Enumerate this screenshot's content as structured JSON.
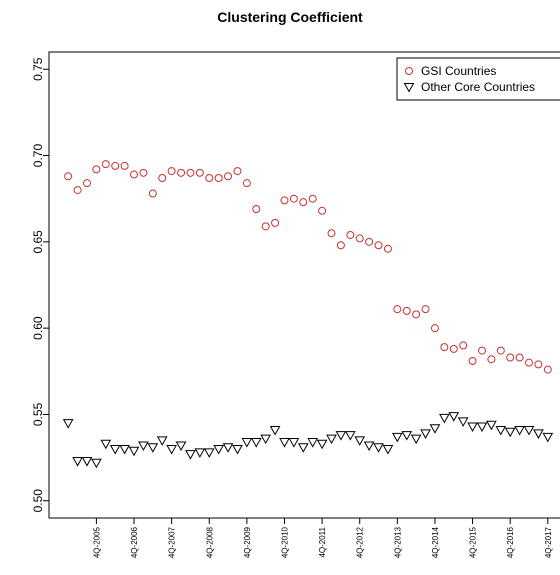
{
  "chart_data": {
    "type": "scatter",
    "title": "Clustering Coefficient",
    "categories": [
      null,
      null,
      null,
      "4Q-2005",
      null,
      null,
      null,
      "4Q-2006",
      null,
      null,
      null,
      "4Q-2007",
      null,
      null,
      null,
      "4Q-2008",
      null,
      null,
      null,
      "4Q-2009",
      null,
      null,
      null,
      "4Q-2010",
      null,
      null,
      null,
      "4Q-2011",
      null,
      null,
      null,
      "4Q-2012",
      null,
      null,
      null,
      "4Q-2013",
      null,
      null,
      null,
      "4Q-2014",
      null,
      null,
      null,
      "4Q-2015",
      null,
      null,
      null,
      "4Q-2016",
      null,
      null,
      null,
      "4Q-2017"
    ],
    "series": [
      {
        "name": "GSI Countries",
        "color": "#c83232",
        "marker": "circle",
        "values": [
          0.688,
          0.68,
          0.684,
          0.692,
          0.695,
          0.694,
          0.694,
          0.689,
          0.69,
          0.678,
          0.687,
          0.691,
          0.69,
          0.69,
          0.69,
          0.687,
          0.687,
          0.688,
          0.691,
          0.684,
          0.669,
          0.659,
          0.661,
          0.674,
          0.675,
          0.673,
          0.675,
          0.668,
          0.655,
          0.648,
          0.654,
          0.652,
          0.65,
          0.648,
          0.646,
          0.611,
          0.61,
          0.608,
          0.611,
          0.6,
          0.589,
          0.588,
          0.59,
          0.581,
          0.587,
          0.582,
          0.587,
          0.583,
          0.583,
          0.58,
          0.579,
          0.576
        ]
      },
      {
        "name": "Other Core Countries",
        "color": "#000000",
        "marker": "triangle-down",
        "values": [
          0.545,
          0.523,
          0.523,
          0.522,
          0.533,
          0.53,
          0.53,
          0.529,
          0.532,
          0.531,
          0.535,
          0.53,
          0.532,
          0.527,
          0.528,
          0.528,
          0.53,
          0.531,
          0.53,
          0.534,
          0.534,
          0.536,
          0.541,
          0.534,
          0.534,
          0.531,
          0.534,
          0.533,
          0.536,
          0.538,
          0.538,
          0.535,
          0.532,
          0.531,
          0.53,
          0.537,
          0.538,
          0.536,
          0.539,
          0.542,
          0.548,
          0.549,
          0.546,
          0.543,
          0.543,
          0.544,
          0.541,
          0.54,
          0.541,
          0.541,
          0.539,
          0.537
        ]
      }
    ],
    "ylim": [
      0.49,
      0.76
    ],
    "yticks": [
      {
        "value": 0.5,
        "label": "0.50"
      },
      {
        "value": 0.55,
        "label": "0.55"
      },
      {
        "value": 0.6,
        "label": "0.60"
      },
      {
        "value": 0.65,
        "label": "0.65"
      },
      {
        "value": 0.7,
        "label": "0.70"
      },
      {
        "value": 0.75,
        "label": "0.75"
      }
    ],
    "legend": "top-right",
    "grid": false
  }
}
